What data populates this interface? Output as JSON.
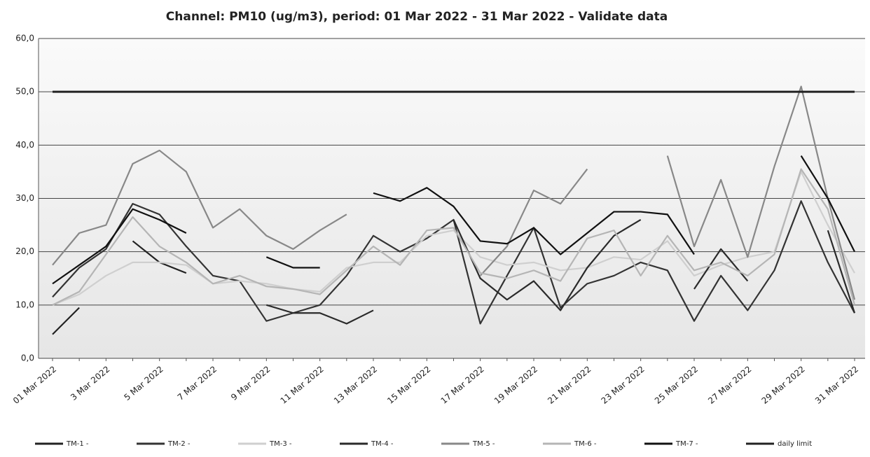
{
  "chart_data": {
    "type": "line",
    "title": "Channel: PM10 (ug/m3), period: 01 Mar 2022 - 31 Mar 2022 - Validate data",
    "categories": [
      "01 Mar 2022",
      null,
      "3 Mar 2022",
      null,
      "5 Mar 2022",
      null,
      "7 Mar 2022",
      null,
      "9 Mar 2022",
      null,
      "11 Mar 2022",
      null,
      "13 Mar 2022",
      null,
      "15 Mar 2022",
      null,
      "17 Mar 2022",
      null,
      "19 Mar 2022",
      null,
      "21 Mar 2022",
      null,
      "23 Mar 2022",
      null,
      "25 Mar 2022",
      null,
      "27 Mar 2022",
      null,
      "29 Mar 2022",
      null,
      "31 Mar 2022"
    ],
    "ylim": [
      0,
      60
    ],
    "yticks": [
      {
        "value": 0,
        "label": "0,0"
      },
      {
        "value": 10,
        "label": "10,0"
      },
      {
        "value": 20,
        "label": "20,0"
      },
      {
        "value": 30,
        "label": "30,0"
      },
      {
        "value": 40,
        "label": "40,0"
      },
      {
        "value": 50,
        "label": "50,0"
      },
      {
        "value": 60,
        "label": "60,0"
      }
    ],
    "grid": true,
    "legend": "bottom",
    "series": [
      {
        "name": "TM-1 -",
        "color": "#222222",
        "values": [
          4.5,
          9.5,
          null,
          22,
          18,
          16,
          null,
          null,
          null,
          null,
          null,
          null,
          null,
          null,
          null,
          null,
          null,
          null,
          null,
          null,
          null,
          null,
          null,
          null,
          null,
          null,
          null,
          null,
          null,
          null,
          null
        ]
      },
      {
        "name": "TM-2 -",
        "color": "#333333",
        "values": [
          11.5,
          17,
          20.5,
          29,
          27,
          21,
          15.5,
          14.5,
          7,
          8.5,
          10,
          15.5,
          23,
          20,
          22.5,
          26,
          6.5,
          15.5,
          24.5,
          9.5,
          14,
          15.5,
          18,
          16.5,
          7,
          15.5,
          9,
          16.5,
          29.5,
          18,
          8.5
        ]
      },
      {
        "name": "TM-3 -",
        "color": "#cfcfcf",
        "values": [
          10,
          12,
          15.5,
          18,
          18,
          17.5,
          14,
          14.5,
          14,
          13,
          12.5,
          17,
          18,
          18,
          23,
          24,
          19,
          17.5,
          18,
          16.5,
          17,
          19,
          18.5,
          22,
          15.5,
          17.5,
          19,
          20,
          35,
          25,
          16
        ]
      },
      {
        "name": "TM-4 -",
        "color": "#2a2a2a",
        "values": [
          null,
          null,
          null,
          null,
          null,
          null,
          null,
          null,
          10,
          8.5,
          8.5,
          6.5,
          9,
          null,
          null,
          26,
          15,
          11,
          14.5,
          9,
          17,
          23,
          26,
          null,
          13,
          20.5,
          14.5,
          null,
          null,
          24,
          8.5
        ]
      },
      {
        "name": "TM-5 -",
        "color": "#888888",
        "values": [
          17.5,
          23.5,
          25,
          36.5,
          39,
          35,
          24.5,
          28,
          23,
          20.5,
          24,
          27,
          null,
          null,
          null,
          null,
          15.5,
          21,
          31.5,
          29,
          35.5,
          null,
          null,
          38,
          21,
          33.5,
          19,
          36,
          51,
          30,
          11
        ]
      },
      {
        "name": "TM-6 -",
        "color": "#b5b5b5",
        "values": [
          10,
          12.5,
          19.5,
          26.5,
          21,
          18,
          14,
          15.5,
          13.5,
          13,
          12,
          16.5,
          21,
          17.5,
          24,
          24.5,
          16,
          15,
          16.5,
          14.5,
          22.5,
          24,
          15.5,
          23,
          16.5,
          18,
          15.5,
          19.5,
          35.5,
          28,
          10
        ]
      },
      {
        "name": "TM-7 -",
        "color": "#111111",
        "values": [
          14,
          17.5,
          21,
          28,
          26,
          23.5,
          null,
          null,
          19,
          17,
          17,
          null,
          31,
          29.5,
          32,
          28.5,
          22,
          21.5,
          24.5,
          19.5,
          23.5,
          27.5,
          27.5,
          27,
          19.5,
          null,
          null,
          null,
          38,
          30,
          20
        ]
      },
      {
        "name": "daily limit",
        "color": "#222222",
        "values": [
          50,
          50,
          50,
          50,
          50,
          50,
          50,
          50,
          50,
          50,
          50,
          50,
          50,
          50,
          50,
          50,
          50,
          50,
          50,
          50,
          50,
          50,
          50,
          50,
          50,
          50,
          50,
          50,
          50,
          50,
          50
        ]
      }
    ]
  }
}
